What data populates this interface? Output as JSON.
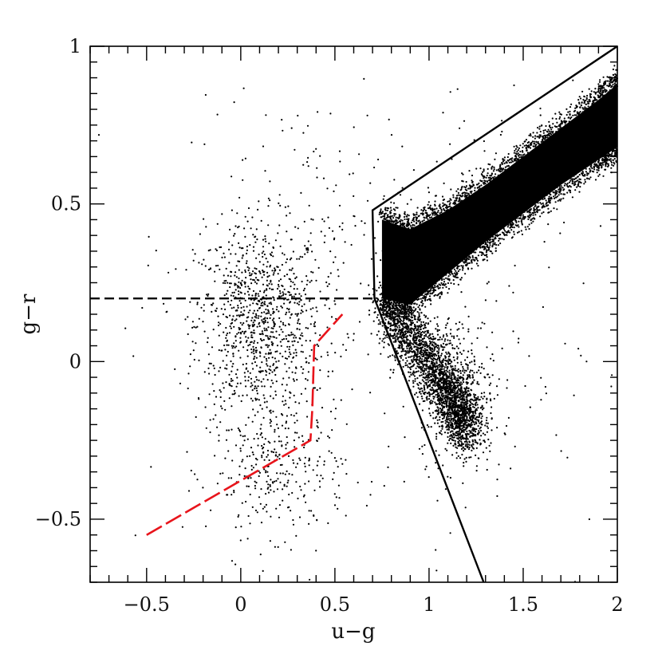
{
  "chart_data": {
    "type": "scatter",
    "xlabel": "u−g",
    "ylabel": "g−r",
    "xlim": [
      -0.8,
      2.0
    ],
    "ylim": [
      -0.7,
      1.0
    ],
    "x_ticks": [
      -0.5,
      0,
      0.5,
      1,
      1.5,
      2
    ],
    "x_tick_labels": [
      "−0.5",
      "0",
      "0.5",
      "1",
      "1.5",
      "2"
    ],
    "y_ticks": [
      -0.5,
      0,
      0.5,
      1
    ],
    "y_tick_labels": [
      "−0.5",
      "0",
      "0.5",
      "1"
    ],
    "grid": false,
    "legend": "none",
    "point_color": "#000000",
    "scatter_groups": [
      {
        "cx": 0.1,
        "cy": 0.12,
        "sx": 0.17,
        "sy": 0.16,
        "n": 1000
      },
      {
        "cx": 0.2,
        "cy": -0.35,
        "sx": 0.18,
        "sy": 0.1,
        "n": 300
      },
      {
        "cx": 0.45,
        "cy": 0.4,
        "sx": 0.4,
        "sy": 0.25,
        "n": 200
      },
      {
        "cx": 1.1,
        "cy": 0.05,
        "sx": 0.5,
        "sy": 0.4,
        "n": 150
      },
      {
        "cx": 1.15,
        "cy": -0.08,
        "sx": 0.1,
        "sy": 0.12,
        "n": 400
      }
    ],
    "dense_band": [
      {
        "x": 0.75,
        "y_low": 0.2,
        "y_high": 0.45
      },
      {
        "x": 0.9,
        "y_low": 0.18,
        "y_high": 0.42
      },
      {
        "x": 1.1,
        "y_low": 0.28,
        "y_high": 0.48
      },
      {
        "x": 1.3,
        "y_low": 0.38,
        "y_high": 0.56
      },
      {
        "x": 1.5,
        "y_low": 0.47,
        "y_high": 0.65
      },
      {
        "x": 1.7,
        "y_low": 0.56,
        "y_high": 0.74
      },
      {
        "x": 1.9,
        "y_low": 0.64,
        "y_high": 0.83
      },
      {
        "x": 2.0,
        "y_low": 0.68,
        "y_high": 0.88
      }
    ],
    "dense_tail": [
      {
        "x": 0.78,
        "y": 0.18
      },
      {
        "x": 0.9,
        "y": 0.08
      },
      {
        "x": 1.05,
        "y": -0.05
      },
      {
        "x": 1.15,
        "y": -0.15
      },
      {
        "x": 1.22,
        "y": -0.22
      }
    ],
    "lines": [
      {
        "style": "solid",
        "color": "#000000",
        "points": [
          [
            1.29,
            -0.7
          ],
          [
            0.71,
            0.2
          ],
          [
            0.7,
            0.48
          ],
          [
            2.0,
            1.0
          ]
        ]
      },
      {
        "style": "dashed",
        "color": "#000000",
        "points": [
          [
            -0.8,
            0.2
          ],
          [
            0.7,
            0.2
          ]
        ]
      },
      {
        "style": "dashed",
        "color": "#e8141b",
        "points": [
          [
            -0.5,
            -0.55
          ],
          [
            0.37,
            -0.25
          ],
          [
            0.38,
            -0.15
          ],
          [
            0.39,
            0.05
          ],
          [
            0.54,
            0.15
          ]
        ]
      }
    ]
  }
}
